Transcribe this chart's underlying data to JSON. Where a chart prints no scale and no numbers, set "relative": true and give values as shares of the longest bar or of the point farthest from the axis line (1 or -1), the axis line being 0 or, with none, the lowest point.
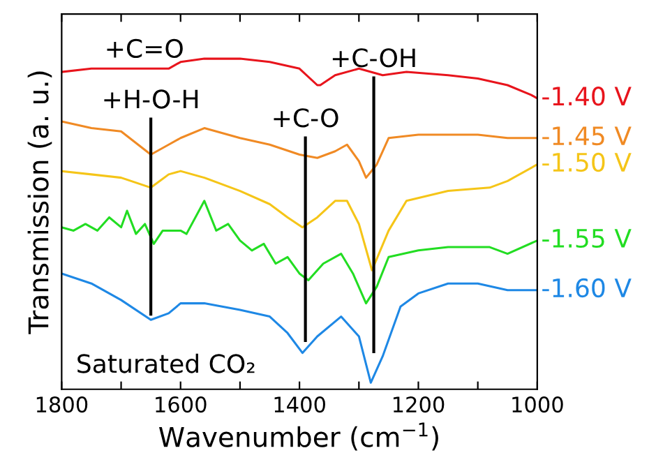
{
  "chart_data": {
    "type": "line",
    "relative": true,
    "xlabel": "Wavenumber (cm$^{−1}$)",
    "ylabel": "Transmission (a. u.)",
    "xlim": [
      1800,
      1000
    ],
    "xticks": [
      1800,
      {
        "value": 1700,
        "label": null
      },
      1600,
      {
        "value": 1500,
        "label": null
      },
      1400,
      {
        "value": 1300,
        "label": null
      },
      1200,
      {
        "value": 1100,
        "label": null
      },
      1000
    ],
    "grid": false,
    "legend": false,
    "marker": "none",
    "line_style": "solid",
    "series": [
      {
        "name": "-1.40 V",
        "color": "#e8141c",
        "x": [
          1800,
          1750,
          1700,
          1650,
          1620,
          1600,
          1560,
          1500,
          1450,
          1400,
          1370,
          1365,
          1340,
          1300,
          1260,
          1220,
          1150,
          1100,
          1050,
          1010,
          1000
        ],
        "values": [
          0.96,
          0.97,
          0.97,
          0.97,
          0.97,
          0.99,
          1.0,
          1.0,
          0.99,
          0.97,
          0.92,
          0.92,
          0.95,
          0.97,
          0.95,
          0.96,
          0.95,
          0.94,
          0.92,
          0.89,
          0.88
        ]
      },
      {
        "name": "-1.45 V",
        "color": "#f08a24",
        "x": [
          1800,
          1750,
          1700,
          1650,
          1620,
          1600,
          1560,
          1500,
          1450,
          1400,
          1370,
          1340,
          1320,
          1300,
          1288,
          1270,
          1250,
          1200,
          1100,
          1050,
          1000
        ],
        "values": [
          0.81,
          0.79,
          0.78,
          0.71,
          0.74,
          0.76,
          0.79,
          0.76,
          0.74,
          0.71,
          0.7,
          0.72,
          0.74,
          0.69,
          0.64,
          0.68,
          0.76,
          0.77,
          0.77,
          0.76,
          0.76
        ]
      },
      {
        "name": "-1.50 V",
        "color": "#f5c518",
        "x": [
          1800,
          1750,
          1700,
          1650,
          1620,
          1600,
          1560,
          1500,
          1450,
          1420,
          1395,
          1370,
          1340,
          1320,
          1300,
          1278,
          1250,
          1220,
          1150,
          1080,
          1050,
          1000
        ],
        "values": [
          0.66,
          0.65,
          0.64,
          0.61,
          0.65,
          0.66,
          0.64,
          0.6,
          0.56,
          0.52,
          0.49,
          0.52,
          0.57,
          0.57,
          0.5,
          0.36,
          0.48,
          0.57,
          0.6,
          0.61,
          0.63,
          0.68
        ]
      },
      {
        "name": "-1.55 V",
        "color": "#22dd22",
        "x": [
          1800,
          1780,
          1760,
          1740,
          1720,
          1700,
          1690,
          1675,
          1660,
          1645,
          1630,
          1600,
          1590,
          1560,
          1540,
          1520,
          1500,
          1480,
          1460,
          1440,
          1420,
          1400,
          1385,
          1360,
          1330,
          1310,
          1288,
          1270,
          1250,
          1200,
          1150,
          1080,
          1050,
          1000
        ],
        "values": [
          0.49,
          0.48,
          0.5,
          0.48,
          0.52,
          0.49,
          0.54,
          0.47,
          0.5,
          0.44,
          0.48,
          0.48,
          0.47,
          0.57,
          0.48,
          0.5,
          0.45,
          0.42,
          0.44,
          0.38,
          0.4,
          0.35,
          0.33,
          0.38,
          0.41,
          0.35,
          0.26,
          0.31,
          0.4,
          0.42,
          0.43,
          0.43,
          0.41,
          0.45
        ]
      },
      {
        "name": "-1.60 V",
        "color": "#1e88e5",
        "x": [
          1800,
          1750,
          1700,
          1650,
          1620,
          1600,
          1560,
          1500,
          1450,
          1420,
          1395,
          1370,
          1330,
          1300,
          1280,
          1260,
          1230,
          1200,
          1150,
          1100,
          1050,
          1000
        ],
        "values": [
          0.35,
          0.32,
          0.27,
          0.21,
          0.23,
          0.26,
          0.26,
          0.24,
          0.22,
          0.17,
          0.11,
          0.16,
          0.22,
          0.16,
          0.02,
          0.1,
          0.25,
          0.29,
          0.32,
          0.32,
          0.3,
          0.3
        ]
      }
    ],
    "ref_lines": [
      {
        "axis": "x",
        "value": 1650,
        "label": "+H-O-H",
        "color": "#000000"
      },
      {
        "axis": "x",
        "value": 1390,
        "label": "+C-O",
        "color": "#000000"
      },
      {
        "axis": "x",
        "value": 1275,
        "label": "+C-OH",
        "color": "#000000"
      }
    ],
    "annotations": [
      "+C=O",
      "Saturated CO₂"
    ]
  }
}
